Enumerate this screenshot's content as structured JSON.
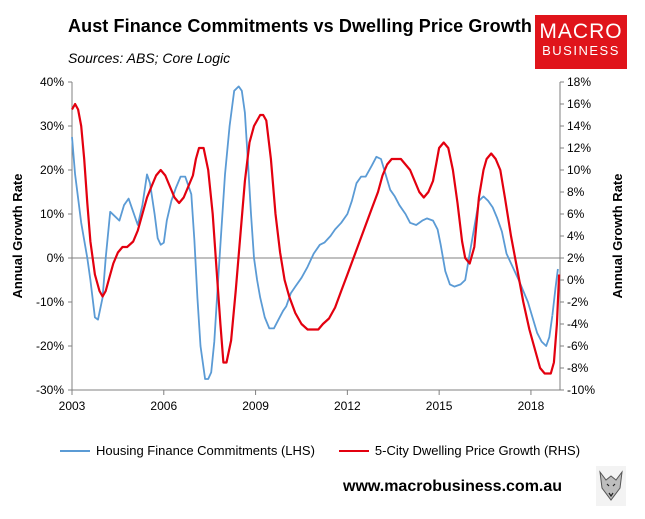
{
  "header": {
    "title": "Aust Finance Commitments vs Dwelling Price Growth",
    "subtitle": "Sources: ABS; Core Logic"
  },
  "logo": {
    "line1": "MACRO",
    "line2": "BUSINESS"
  },
  "footer": {
    "url": "www.macrobusiness.com.au"
  },
  "colors": {
    "lhs": "#5b9bd5",
    "rhs": "#e3000f",
    "logo_bg": "#e0141b"
  },
  "chart_data": {
    "type": "line",
    "title": "Aust Finance Commitments vs Dwelling Price Growth",
    "ylabel_left": "Annual Growth Rate",
    "ylabel_right": "Annual Growth Rate",
    "xlim": [
      2003,
      2018.95
    ],
    "ylim_left": [
      -30,
      40
    ],
    "ylim_right": [
      -10,
      18
    ],
    "x_ticks": [
      "2003",
      "2006",
      "2009",
      "2012",
      "2015",
      "2018"
    ],
    "x_tick_values": [
      2003,
      2006,
      2009,
      2012,
      2015,
      2018
    ],
    "y_ticks_left": [
      "-30%",
      "-20%",
      "-10%",
      "0%",
      "10%",
      "20%",
      "30%",
      "40%"
    ],
    "y_tick_values_left": [
      -30,
      -20,
      -10,
      0,
      10,
      20,
      30,
      40
    ],
    "y_ticks_right": [
      "-10%",
      "-8%",
      "-6%",
      "-4%",
      "-2%",
      "0%",
      "2%",
      "4%",
      "6%",
      "8%",
      "10%",
      "12%",
      "14%",
      "16%",
      "18%"
    ],
    "y_tick_values_right": [
      -10,
      -8,
      -6,
      -4,
      -2,
      0,
      2,
      4,
      6,
      8,
      10,
      12,
      14,
      16,
      18
    ],
    "legend_position": "bottom",
    "series": [
      {
        "name": "Housing Finance Commitments (LHS)",
        "axis": "left",
        "color": "#5b9bd5",
        "x": [
          2003.0,
          2003.1,
          2003.3,
          2003.5,
          2003.6,
          2003.75,
          2003.85,
          2004.0,
          2004.1,
          2004.25,
          2004.4,
          2004.55,
          2004.7,
          2004.85,
          2005.0,
          2005.15,
          2005.3,
          2005.45,
          2005.55,
          2005.7,
          2005.8,
          2005.9,
          2006.0,
          2006.1,
          2006.25,
          2006.4,
          2006.55,
          2006.7,
          2006.9,
          2007.0,
          2007.1,
          2007.2,
          2007.35,
          2007.45,
          2007.55,
          2007.65,
          2007.75,
          2007.85,
          2008.0,
          2008.15,
          2008.3,
          2008.45,
          2008.55,
          2008.65,
          2008.75,
          2008.85,
          2008.95,
          2009.05,
          2009.15,
          2009.3,
          2009.45,
          2009.6,
          2009.75,
          2009.9,
          2010.0,
          2010.15,
          2010.3,
          2010.5,
          2010.7,
          2010.9,
          2011.1,
          2011.25,
          2011.45,
          2011.6,
          2011.8,
          2012.0,
          2012.15,
          2012.3,
          2012.45,
          2012.6,
          2012.8,
          2012.95,
          2013.1,
          2013.25,
          2013.4,
          2013.55,
          2013.7,
          2013.9,
          2014.05,
          2014.25,
          2014.45,
          2014.6,
          2014.8,
          2014.95,
          2015.05,
          2015.2,
          2015.35,
          2015.5,
          2015.7,
          2015.85,
          2016.0,
          2016.15,
          2016.3,
          2016.45,
          2016.6,
          2016.75,
          2016.9,
          2017.05,
          2017.2,
          2017.4,
          2017.6,
          2017.75,
          2017.9,
          2018.05,
          2018.2,
          2018.35,
          2018.5,
          2018.6,
          2018.7
        ],
        "values": [
          27.5,
          19,
          8,
          0,
          -5,
          -13.5,
          -14,
          -9,
          0,
          10.5,
          9.5,
          8.5,
          12,
          13.5,
          10.5,
          7.5,
          12,
          19,
          17,
          10,
          4.5,
          3,
          3.5,
          8.5,
          13,
          16,
          18.5,
          18.5,
          14.5,
          4,
          -9,
          -20,
          -27.5,
          -27.5,
          -26,
          -19,
          -8,
          3,
          19,
          30,
          38,
          39,
          38,
          33,
          22,
          10,
          0,
          -5,
          -9,
          -13.5,
          -16,
          -16,
          -14,
          -12,
          -11,
          -8,
          -6.5,
          -4.5,
          -2,
          1,
          3,
          3.5,
          5,
          6.5,
          8,
          10,
          13,
          17,
          18.5,
          18.5,
          21,
          23,
          22.5,
          19,
          15.5,
          14,
          12,
          10,
          8,
          7.5,
          8.5,
          9,
          8.5,
          6.5,
          3,
          -3,
          -6,
          -6.5,
          -6,
          -5,
          1,
          7,
          13,
          14,
          13,
          11.5,
          9,
          6,
          1,
          -2,
          -5,
          -7.5,
          -10,
          -13.5,
          -17,
          -19,
          -20,
          -18,
          -13
        ],
        "tail": {
          "x": [
            2018.8,
            2018.88
          ],
          "values": [
            -7,
            -2.5
          ]
        }
      },
      {
        "name": "5-City Dwelling Price Growth (RHS)",
        "axis": "right",
        "color": "#e3000f",
        "x": [
          2003.0,
          2003.1,
          2003.2,
          2003.3,
          2003.4,
          2003.5,
          2003.6,
          2003.75,
          2003.9,
          2004.0,
          2004.1,
          2004.2,
          2004.35,
          2004.5,
          2004.65,
          2004.8,
          2005.0,
          2005.15,
          2005.3,
          2005.45,
          2005.6,
          2005.75,
          2005.9,
          2006.05,
          2006.2,
          2006.35,
          2006.5,
          2006.65,
          2006.8,
          2006.95,
          2007.05,
          2007.15,
          2007.3,
          2007.45,
          2007.6,
          2007.75,
          2007.85,
          2007.95,
          2008.05,
          2008.2,
          2008.35,
          2008.5,
          2008.65,
          2008.8,
          2008.95,
          2009.05,
          2009.15,
          2009.25,
          2009.35,
          2009.5,
          2009.65,
          2009.8,
          2009.95,
          2010.1,
          2010.3,
          2010.5,
          2010.7,
          2010.9,
          2011.05,
          2011.2,
          2011.4,
          2011.6,
          2011.8,
          2012.0,
          2012.2,
          2012.4,
          2012.6,
          2012.8,
          2013.0,
          2013.15,
          2013.3,
          2013.45,
          2013.6,
          2013.75,
          2013.9,
          2014.05,
          2014.2,
          2014.35,
          2014.5,
          2014.65,
          2014.8,
          2014.9,
          2015.0,
          2015.15,
          2015.3,
          2015.45,
          2015.6,
          2015.75,
          2015.85,
          2016.0,
          2016.15,
          2016.3,
          2016.45,
          2016.55,
          2016.7,
          2016.85,
          2017.0,
          2017.15,
          2017.35,
          2017.55,
          2017.75,
          2017.95,
          2018.15,
          2018.3,
          2018.45,
          2018.55,
          2018.65,
          2018.75,
          2018.85,
          2018.92
        ],
        "values": [
          15.5,
          16,
          15.5,
          14,
          11,
          7,
          3.5,
          0.5,
          -1,
          -1.5,
          -1,
          0,
          1.5,
          2.5,
          3,
          3,
          3.5,
          4.5,
          6,
          7.5,
          8.5,
          9.5,
          10,
          9.5,
          8.5,
          7.5,
          7,
          7.5,
          8.5,
          9.5,
          11,
          12,
          12,
          10,
          6,
          0,
          -4,
          -7.5,
          -7.5,
          -5.5,
          -1,
          4,
          9,
          12.5,
          14,
          14.5,
          15,
          15,
          14.5,
          11,
          6,
          2.5,
          0,
          -1.5,
          -3,
          -4,
          -4.5,
          -4.5,
          -4.5,
          -4,
          -3.5,
          -2.5,
          -1,
          0.5,
          2,
          3.5,
          5,
          6.5,
          8,
          9.5,
          10.5,
          11,
          11,
          11,
          10.5,
          10,
          9,
          8,
          7.5,
          8,
          9,
          10.5,
          12,
          12.5,
          12,
          10,
          7,
          3.5,
          2,
          1.5,
          3,
          7.5,
          10,
          11,
          11.5,
          11,
          10,
          7.5,
          4,
          1,
          -2,
          -4.5,
          -6.5,
          -8,
          -8.5,
          -8.5,
          -8.5,
          -7.5,
          -4,
          0.5
        ]
      }
    ]
  }
}
